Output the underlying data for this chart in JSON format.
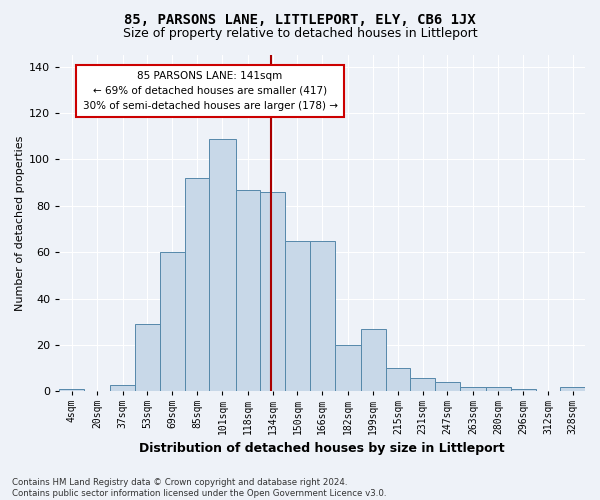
{
  "title": "85, PARSONS LANE, LITTLEPORT, ELY, CB6 1JX",
  "subtitle": "Size of property relative to detached houses in Littleport",
  "xlabel": "Distribution of detached houses by size in Littleport",
  "ylabel": "Number of detached properties",
  "bin_labels": [
    "4sqm",
    "20sqm",
    "37sqm",
    "53sqm",
    "69sqm",
    "85sqm",
    "101sqm",
    "118sqm",
    "134sqm",
    "150sqm",
    "166sqm",
    "182sqm",
    "199sqm",
    "215sqm",
    "231sqm",
    "247sqm",
    "263sqm",
    "280sqm",
    "296sqm",
    "312sqm",
    "328sqm"
  ],
  "bin_edges": [
    4,
    20,
    37,
    53,
    69,
    85,
    101,
    118,
    134,
    150,
    166,
    182,
    199,
    215,
    231,
    247,
    263,
    280,
    296,
    312,
    328
  ],
  "bar_heights": [
    1,
    0,
    3,
    29,
    60,
    92,
    109,
    87,
    86,
    65,
    65,
    20,
    27,
    10,
    6,
    4,
    2,
    2,
    1,
    0,
    2
  ],
  "bar_color": "#c8d8e8",
  "bar_edge_color": "#5588aa",
  "property_line_x": 141,
  "property_line_color": "#aa0000",
  "annotation_text": "85 PARSONS LANE: 141sqm\n← 69% of detached houses are smaller (417)\n30% of semi-detached houses are larger (178) →",
  "annotation_box_color": "#ffffff",
  "annotation_box_edge": "#cc0000",
  "ylim": [
    0,
    145
  ],
  "yticks": [
    0,
    20,
    40,
    60,
    80,
    100,
    120,
    140
  ],
  "bg_color": "#eef2f8",
  "plot_bg_color": "#eef2f8",
  "footnote": "Contains HM Land Registry data © Crown copyright and database right 2024.\nContains public sector information licensed under the Open Government Licence v3.0.",
  "title_fontsize": 10,
  "subtitle_fontsize": 9,
  "xlabel_fontsize": 9,
  "ylabel_fontsize": 8,
  "ann_fontsize": 7.5,
  "tick_fontsize": 7,
  "ytick_fontsize": 8
}
